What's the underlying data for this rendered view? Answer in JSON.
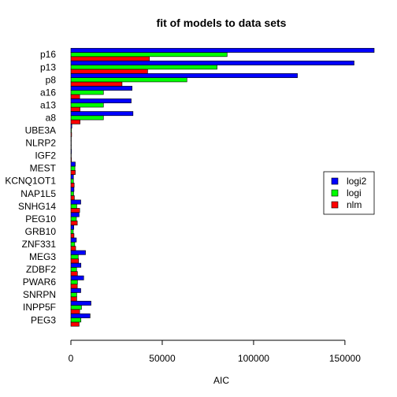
{
  "chart_data": {
    "type": "bar",
    "orientation": "horizontal",
    "title": "fit of models to data sets",
    "xlabel": "AIC",
    "ylabel": "",
    "xlim": [
      0,
      166000
    ],
    "xticks": [
      0,
      50000,
      100000,
      150000
    ],
    "xtick_labels": [
      "0",
      "50000",
      "100000",
      "150000"
    ],
    "grid": false,
    "legend_position": "right",
    "categories": [
      "PEG3",
      "INPP5F",
      "SNRPN",
      "PWAR6",
      "ZDBF2",
      "MEG3",
      "ZNF331",
      "GRB10",
      "PEG10",
      "SNHG14",
      "NAP1L5",
      "KCNQ1OT1",
      "MEST",
      "IGF2",
      "NLRP2",
      "UBE3A",
      "a8",
      "a13",
      "a16",
      "p8",
      "p13",
      "p16"
    ],
    "series": [
      {
        "name": "nlm",
        "color": "#ff0000",
        "values": [
          4500,
          4800,
          3200,
          3500,
          3600,
          4200,
          2600,
          1700,
          3500,
          4800,
          1900,
          1800,
          2400,
          300,
          200,
          400,
          5000,
          5000,
          4800,
          28000,
          42000,
          43000
        ]
      },
      {
        "name": "logi",
        "color": "#00ff00",
        "values": [
          5500,
          5800,
          3200,
          3600,
          3100,
          4000,
          2100,
          1300,
          3000,
          3200,
          1500,
          1400,
          2200,
          200,
          150,
          300,
          17800,
          17800,
          17800,
          63500,
          80000,
          85500
        ]
      },
      {
        "name": "logi2",
        "color": "#0000ff",
        "values": [
          10500,
          11000,
          5400,
          7000,
          5500,
          8000,
          3000,
          1600,
          4500,
          5400,
          1700,
          1400,
          2400,
          300,
          200,
          500,
          34000,
          33000,
          33500,
          124000,
          155000,
          166000
        ]
      }
    ]
  }
}
